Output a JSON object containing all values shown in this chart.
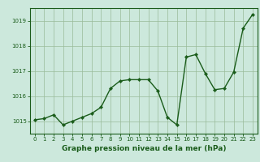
{
  "x": [
    0,
    1,
    2,
    3,
    4,
    5,
    6,
    7,
    8,
    9,
    10,
    11,
    12,
    13,
    14,
    15,
    16,
    17,
    18,
    19,
    20,
    21,
    22,
    23
  ],
  "y": [
    1015.05,
    1015.1,
    1015.25,
    1014.85,
    1015.0,
    1015.15,
    1015.3,
    1015.55,
    1016.3,
    1016.6,
    1016.65,
    1016.65,
    1016.65,
    1016.2,
    1015.15,
    1014.85,
    1017.55,
    1017.65,
    1016.9,
    1016.25,
    1016.3,
    1016.95,
    1018.7,
    1019.25
  ],
  "line_color": "#1a5c1a",
  "marker": "D",
  "marker_size": 2.2,
  "linewidth": 1.0,
  "bg_color": "#cce8dc",
  "grid_color": "#99bb99",
  "title": "Graphe pression niveau de la mer (hPa)",
  "title_color": "#1a5c1a",
  "title_fontsize": 6.5,
  "ylim": [
    1014.5,
    1019.5
  ],
  "yticks": [
    1015,
    1016,
    1017,
    1018,
    1019
  ],
  "xlim": [
    -0.5,
    23.5
  ],
  "xticks": [
    0,
    1,
    2,
    3,
    4,
    5,
    6,
    7,
    8,
    9,
    10,
    11,
    12,
    13,
    14,
    15,
    16,
    17,
    18,
    19,
    20,
    21,
    22,
    23
  ],
  "tick_fontsize": 5.0,
  "tick_color": "#1a5c1a",
  "axes_color": "#1a5c1a",
  "spine_linewidth": 0.8
}
